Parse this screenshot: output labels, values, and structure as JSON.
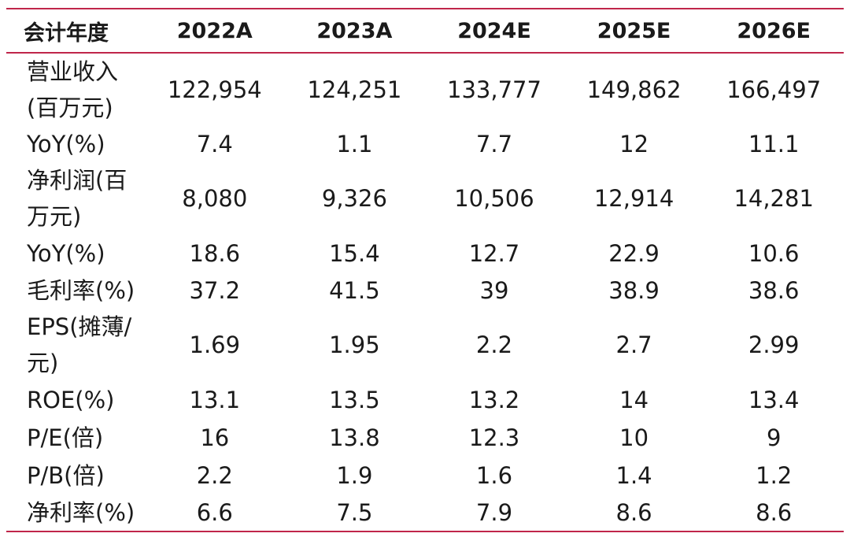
{
  "header": [
    "会计年度",
    "2022A",
    "2023A",
    "2024E",
    "2025E",
    "2026E"
  ],
  "rows": [
    {
      "label": [
        "营业收入",
        "(百万元)"
      ],
      "values": [
        "122,954",
        "124,251",
        "133,777",
        "149,862",
        "166,497"
      ]
    },
    {
      "label": [
        "YoY(%)"
      ],
      "values": [
        "7.4",
        "1.1",
        "7.7",
        "12",
        "11.1"
      ]
    },
    {
      "label": [
        "净利润(百",
        "万元)"
      ],
      "values": [
        "8,080",
        "9,326",
        "10,506",
        "12,914",
        "14,281"
      ]
    },
    {
      "label": [
        "YoY(%)"
      ],
      "values": [
        "18.6",
        "15.4",
        "12.7",
        "22.9",
        "10.6"
      ]
    },
    {
      "label": [
        "毛利率(%)"
      ],
      "values": [
        "37.2",
        "41.5",
        "39",
        "38.9",
        "38.6"
      ]
    },
    {
      "label": [
        "EPS(摊薄/",
        "元)"
      ],
      "values": [
        "1.69",
        "1.95",
        "2.2",
        "2.7",
        "2.99"
      ]
    },
    {
      "label": [
        "ROE(%)"
      ],
      "values": [
        "13.1",
        "13.5",
        "13.2",
        "14",
        "13.4"
      ]
    },
    {
      "label": [
        "P/E(倍)"
      ],
      "values": [
        "16",
        "13.8",
        "12.3",
        "10",
        "9"
      ]
    },
    {
      "label": [
        "P/B(倍)"
      ],
      "values": [
        "2.2",
        "1.9",
        "1.6",
        "1.4",
        "1.2"
      ]
    },
    {
      "label": [
        "净利率(%)"
      ],
      "values": [
        "6.6",
        "7.5",
        "7.9",
        "8.6",
        "8.6"
      ]
    }
  ],
  "colors": {
    "rule": "#c0264a",
    "text": "#1a1a1a"
  }
}
